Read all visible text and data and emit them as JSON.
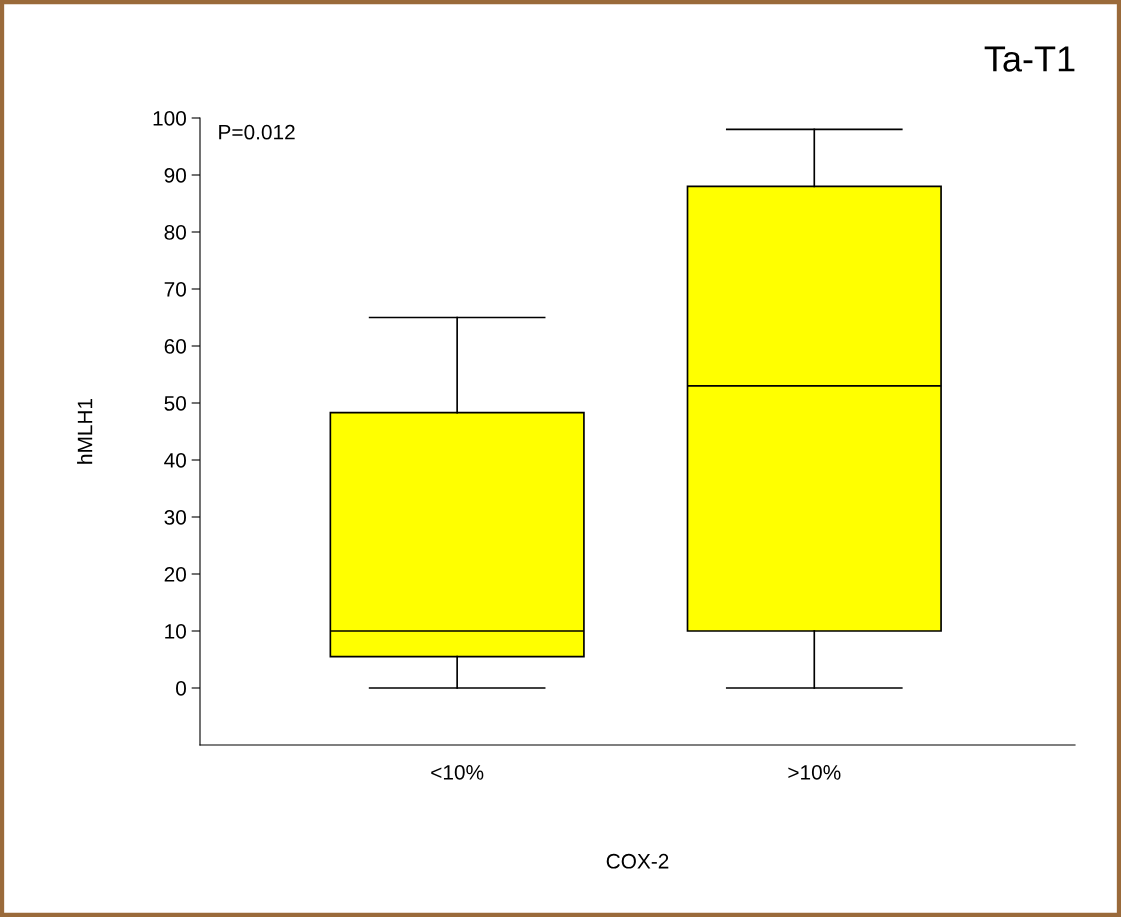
{
  "chart_data": {
    "type": "box",
    "title": "Ta-T1",
    "xlabel": "COX-2",
    "ylabel": "hMLH1",
    "categories": [
      "<10%",
      ">10%"
    ],
    "boxes": [
      {
        "low": 0,
        "q1": 5.5,
        "median": 10,
        "q3": 48.3,
        "high": 65
      },
      {
        "low": 0,
        "q1": 10,
        "median": 53,
        "q3": 88,
        "high": 98
      }
    ],
    "color": "#ffff00",
    "ylim": [
      -10,
      100
    ],
    "yticks": [
      0,
      10,
      20,
      30,
      40,
      50,
      60,
      70,
      80,
      90,
      100
    ],
    "grid": false,
    "annotations": [
      "P=0.012"
    ]
  }
}
